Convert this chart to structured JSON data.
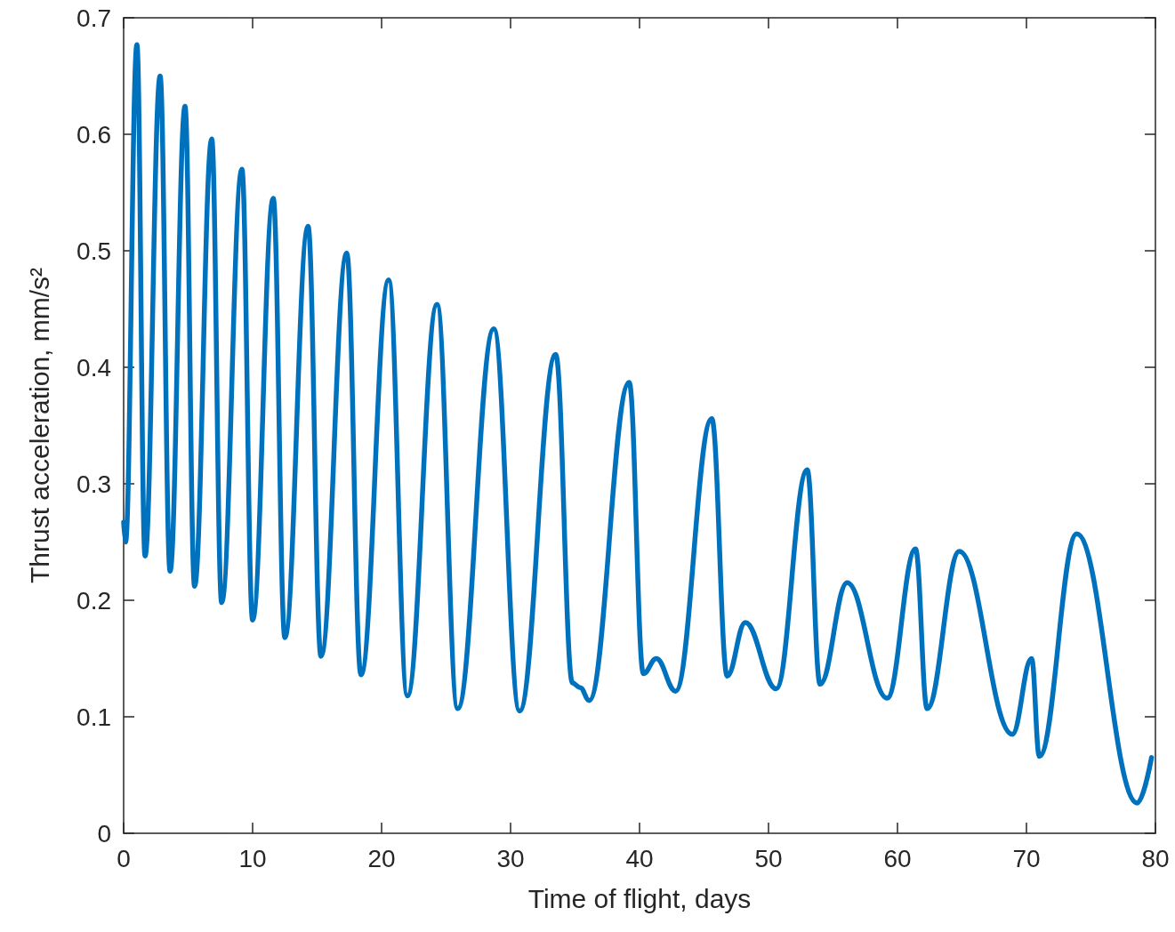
{
  "chart_data": {
    "type": "line",
    "xlabel": "Time of flight, days",
    "ylabel": "Thrust acceleration, mm/s²",
    "xlim": [
      0,
      80
    ],
    "xticks": [
      0,
      10,
      20,
      30,
      40,
      50,
      60,
      70,
      80
    ],
    "ylim": [
      0,
      0.7
    ],
    "yticks": [
      0,
      0.1,
      0.2,
      0.3,
      0.4,
      0.5,
      0.6,
      0.7
    ],
    "grid": false,
    "marker": "none",
    "line_style": "solid",
    "series": [
      {
        "color": "#0072bd",
        "x": [
          0,
          0.15,
          1.03,
          1.66,
          2.83,
          3.6,
          4.76,
          5.5,
          6.83,
          7.6,
          9.17,
          10.0,
          11.6,
          12.5,
          14.3,
          15.3,
          17.3,
          18.4,
          20.55,
          22.0,
          24.3,
          25.9,
          28.7,
          30.7,
          33.5,
          34.8,
          35.4,
          36.1,
          39.2,
          40.3,
          41.3,
          42.8,
          45.6,
          46.8,
          48.2,
          50.6,
          53.0,
          54.0,
          56.1,
          59.2,
          61.4,
          62.3,
          64.8,
          68.9,
          70.4,
          71.0,
          73.9,
          78.6,
          79.7
        ],
        "values": [
          0.267,
          0.25,
          0.677,
          0.238,
          0.65,
          0.225,
          0.624,
          0.212,
          0.596,
          0.198,
          0.57,
          0.183,
          0.545,
          0.168,
          0.521,
          0.152,
          0.498,
          0.136,
          0.475,
          0.118,
          0.454,
          0.107,
          0.433,
          0.105,
          0.411,
          0.129,
          0.125,
          0.114,
          0.387,
          0.137,
          0.15,
          0.122,
          0.356,
          0.135,
          0.181,
          0.124,
          0.312,
          0.128,
          0.215,
          0.116,
          0.244,
          0.107,
          0.242,
          0.085,
          0.15,
          0.066,
          0.257,
          0.026,
          0.065
        ]
      }
    ]
  }
}
